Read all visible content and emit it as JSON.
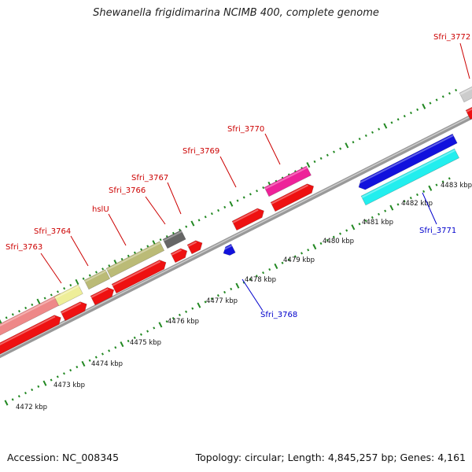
{
  "title": "Shewanella frigidimarina NCIMB 400, complete genome",
  "footer": {
    "accession": "Accession: NC_008345",
    "summary": "Topology: circular; Length: 4,845,257 bp; Genes: 4,161"
  },
  "ticks": [
    "4472 kbp",
    "4473 kbp",
    "4474 kbp",
    "4475 kbp",
    "4476 kbp",
    "4477 kbp",
    "4478 kbp",
    "4479 kbp",
    "4480 kbp",
    "4481 kbp",
    "4482 kbp",
    "4483 kbp"
  ],
  "gene_labels": [
    {
      "text": "Sfri_3763",
      "color": "#cc0000"
    },
    {
      "text": "Sfri_3764",
      "color": "#cc0000"
    },
    {
      "text": "hslU",
      "color": "#cc0000"
    },
    {
      "text": "Sfri_3766",
      "color": "#cc0000"
    },
    {
      "text": "Sfri_3767",
      "color": "#cc0000"
    },
    {
      "text": "Sfri_3769",
      "color": "#cc0000"
    },
    {
      "text": "Sfri_3770",
      "color": "#cc0000"
    },
    {
      "text": "Sfri_3772",
      "color": "#cc0000"
    },
    {
      "text": "Sfri_3768",
      "color": "#0000cc"
    },
    {
      "text": "Sfri_3771",
      "color": "#0000cc"
    }
  ],
  "colors": {
    "cds": "#ee1111",
    "reverse_cds": "#1111dd",
    "backbone": "#999999",
    "dots": "#228822",
    "pink": "#ee8888",
    "yellow": "#eeee99",
    "olive": "#bbbb77",
    "dark_gray": "#666666",
    "magenta": "#ee2299",
    "cyan": "#22eeee",
    "light_gray": "#cccccc"
  }
}
